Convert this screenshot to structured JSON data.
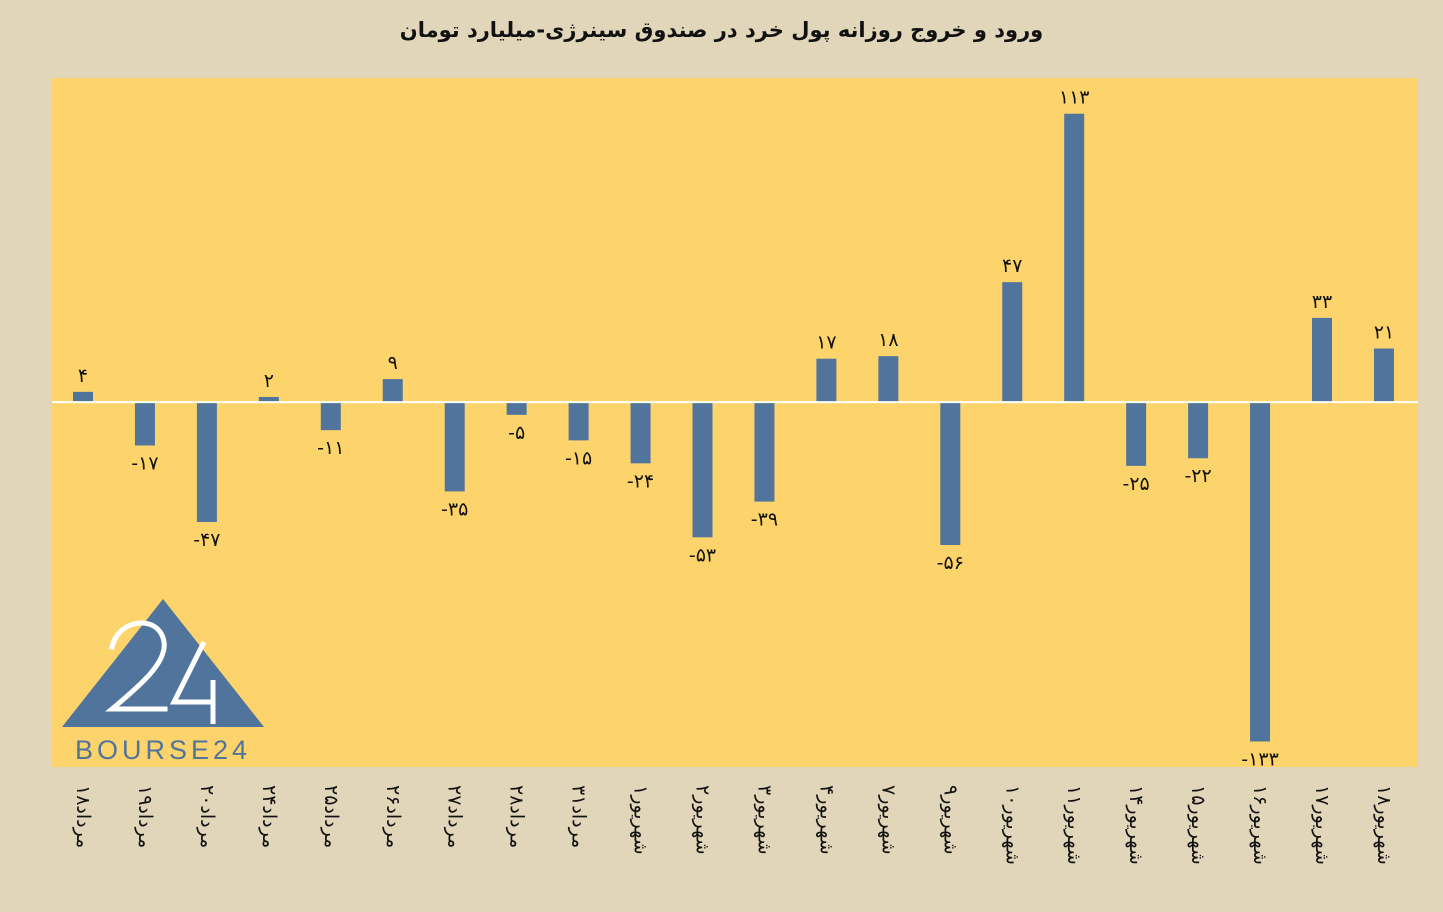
{
  "colors": {
    "page_background": "#e1d6b9",
    "plot_background": "#fcd46b",
    "bar": "#51749c",
    "zero_line": "#ffffff",
    "logo": "#51749c"
  },
  "logo": {
    "name": "bourse24-logo",
    "mark_text": "24",
    "wordmark": "BOURSE24"
  },
  "chart_data": {
    "type": "bar",
    "title": "ورود و خروج روزانه پول خرد در صندوق سینرژی-میلیارد تومان",
    "xlabel": "",
    "ylabel": "",
    "ylim": [
      -143,
      127
    ],
    "grid": false,
    "legend": "none",
    "categories": [
      "۱۸مرداد",
      "۱۹مرداد",
      "۲۰مرداد",
      "۲۴مرداد",
      "۲۵مرداد",
      "۲۶مرداد",
      "۲۷مرداد",
      "۲۸مرداد",
      "۳۱مرداد",
      "۱شهریور",
      "۲شهریور",
      "۳شهریور",
      "۴شهریور",
      "۷شهریور",
      "۹شهریور",
      "۱۰شهریور",
      "۱۱شهریور",
      "۱۴شهریور",
      "۱۵شهریور",
      "۱۶شهریور",
      "۱۷شهریور",
      "۱۸شهریور"
    ],
    "values": [
      4,
      -17,
      -47,
      2,
      -11,
      9,
      -35,
      -5,
      -15,
      -24,
      -53,
      -39,
      17,
      18,
      -56,
      47,
      113,
      -25,
      -22,
      -133,
      33,
      21
    ],
    "value_labels": [
      "۴",
      "-۱۷",
      "-۴۷",
      "۲",
      "-۱۱",
      "۹",
      "-۳۵",
      "-۵",
      "-۱۵",
      "-۲۴",
      "-۵۳",
      "-۳۹",
      "۱۷",
      "۱۸",
      "-۵۶",
      "۴۷",
      "۱۱۳",
      "-۲۵",
      "-۲۲",
      "-۱۳۳",
      "۳۳",
      "۲۱"
    ]
  }
}
